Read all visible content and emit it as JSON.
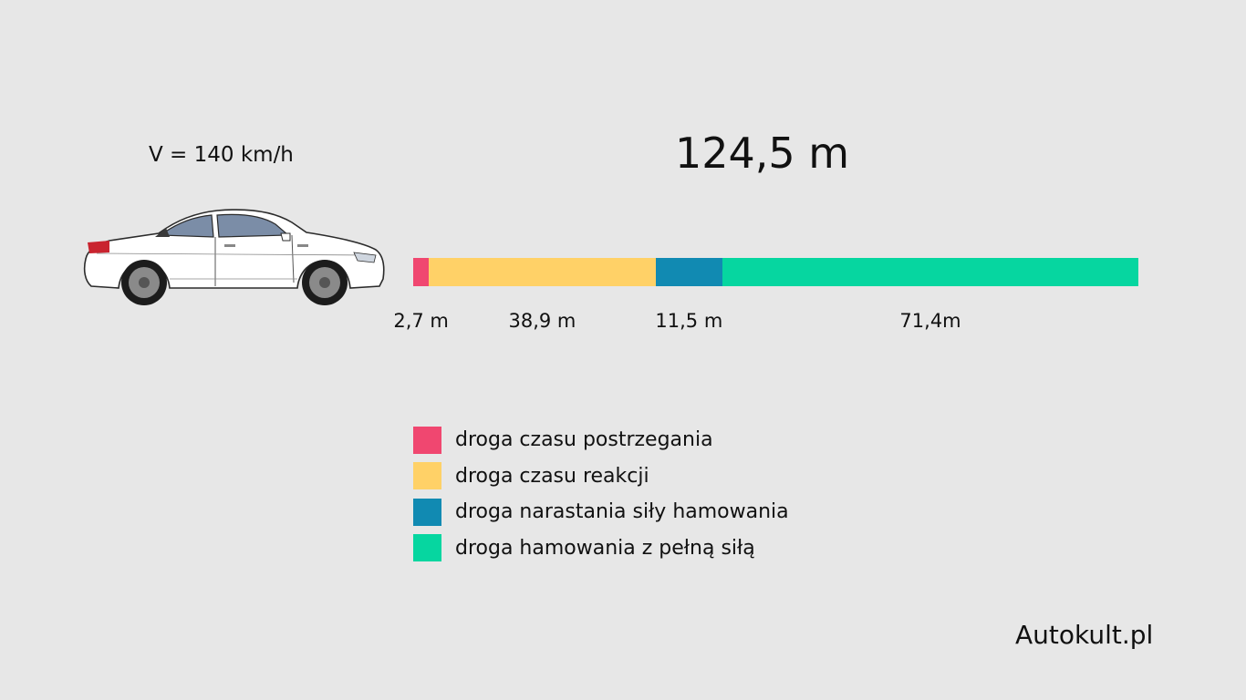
{
  "speed_label": "V = 140 km/h",
  "total_label": "124,5 m",
  "brand": "Autokult.pl",
  "car_icon": "car-side-icon",
  "chart_data": {
    "type": "bar",
    "orientation": "horizontal-stacked",
    "title": "",
    "total": 124.5,
    "unit": "m",
    "series": [
      {
        "name": "droga czasu postrzegania",
        "value": 2.7,
        "value_label": "2,7 m",
        "color": "#f04770"
      },
      {
        "name": "droga czasu reakcji",
        "value": 38.9,
        "value_label": "38,9 m",
        "color": "#ffd167"
      },
      {
        "name": "droga narastania siły hamowania",
        "value": 11.5,
        "value_label": "11,5 m",
        "color": "#118ab2"
      },
      {
        "name": "droga hamowania z pełną siłą",
        "value": 71.4,
        "value_label": "71,4m",
        "color": "#06d6a0"
      }
    ],
    "legend": "bottom"
  }
}
